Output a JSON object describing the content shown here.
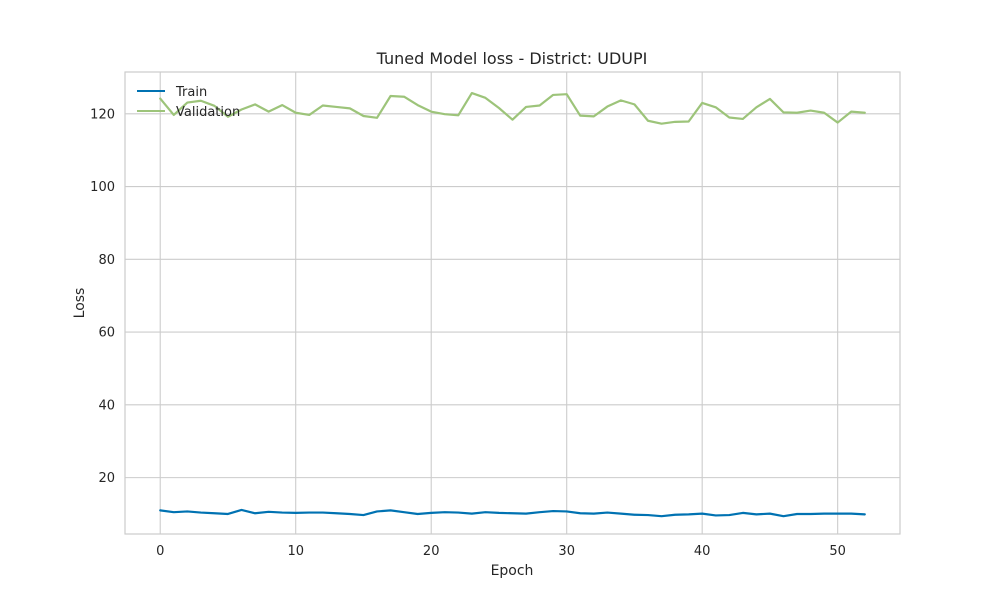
{
  "chart_data": {
    "type": "line",
    "title": "Tuned Model loss - District: UDUPI",
    "xlabel": "Epoch",
    "ylabel": "Loss",
    "xlim": [
      -2.6,
      54.6
    ],
    "ylim": [
      4.5,
      131.5
    ],
    "xticks": [
      0,
      10,
      20,
      30,
      40,
      50
    ],
    "yticks": [
      20,
      40,
      60,
      80,
      100,
      120
    ],
    "grid": true,
    "legend_position": "top-left",
    "x": [
      0,
      1,
      2,
      3,
      4,
      5,
      6,
      7,
      8,
      9,
      10,
      11,
      12,
      13,
      14,
      15,
      16,
      17,
      18,
      19,
      20,
      21,
      22,
      23,
      24,
      25,
      26,
      27,
      28,
      29,
      30,
      31,
      32,
      33,
      34,
      35,
      36,
      37,
      38,
      39,
      40,
      41,
      42,
      43,
      44,
      45,
      46,
      47,
      48,
      49,
      50,
      51,
      52
    ],
    "series": [
      {
        "name": "Train",
        "color": "#0072b2",
        "values": [
          11.0,
          10.5,
          10.7,
          10.4,
          10.2,
          10.0,
          11.1,
          10.2,
          10.6,
          10.4,
          10.3,
          10.4,
          10.4,
          10.2,
          10.0,
          9.7,
          10.7,
          11.0,
          10.5,
          10.0,
          10.3,
          10.5,
          10.4,
          10.1,
          10.5,
          10.3,
          10.2,
          10.1,
          10.5,
          10.8,
          10.7,
          10.2,
          10.1,
          10.4,
          10.1,
          9.8,
          9.7,
          9.4,
          9.8,
          9.9,
          10.1,
          9.6,
          9.7,
          10.3,
          9.9,
          10.1,
          9.4,
          10.0,
          10.0,
          10.1,
          10.1,
          10.1,
          9.9
        ]
      },
      {
        "name": "Validation",
        "color": "#9dc47a",
        "values": [
          124.2,
          119.7,
          123.1,
          123.6,
          122.2,
          119.2,
          121.2,
          122.6,
          120.6,
          122.4,
          120.3,
          119.7,
          122.3,
          121.9,
          121.5,
          119.4,
          118.9,
          124.9,
          124.7,
          122.4,
          120.6,
          119.9,
          119.6,
          125.7,
          124.4,
          121.6,
          118.4,
          121.9,
          122.3,
          125.2,
          125.4,
          119.5,
          119.3,
          122.0,
          123.7,
          122.6,
          118.1,
          117.3,
          117.8,
          117.9,
          123.0,
          121.8,
          119.0,
          118.6,
          121.8,
          124.1,
          120.4,
          120.3,
          120.9,
          120.3,
          117.6,
          120.6,
          120.3
        ]
      }
    ]
  }
}
